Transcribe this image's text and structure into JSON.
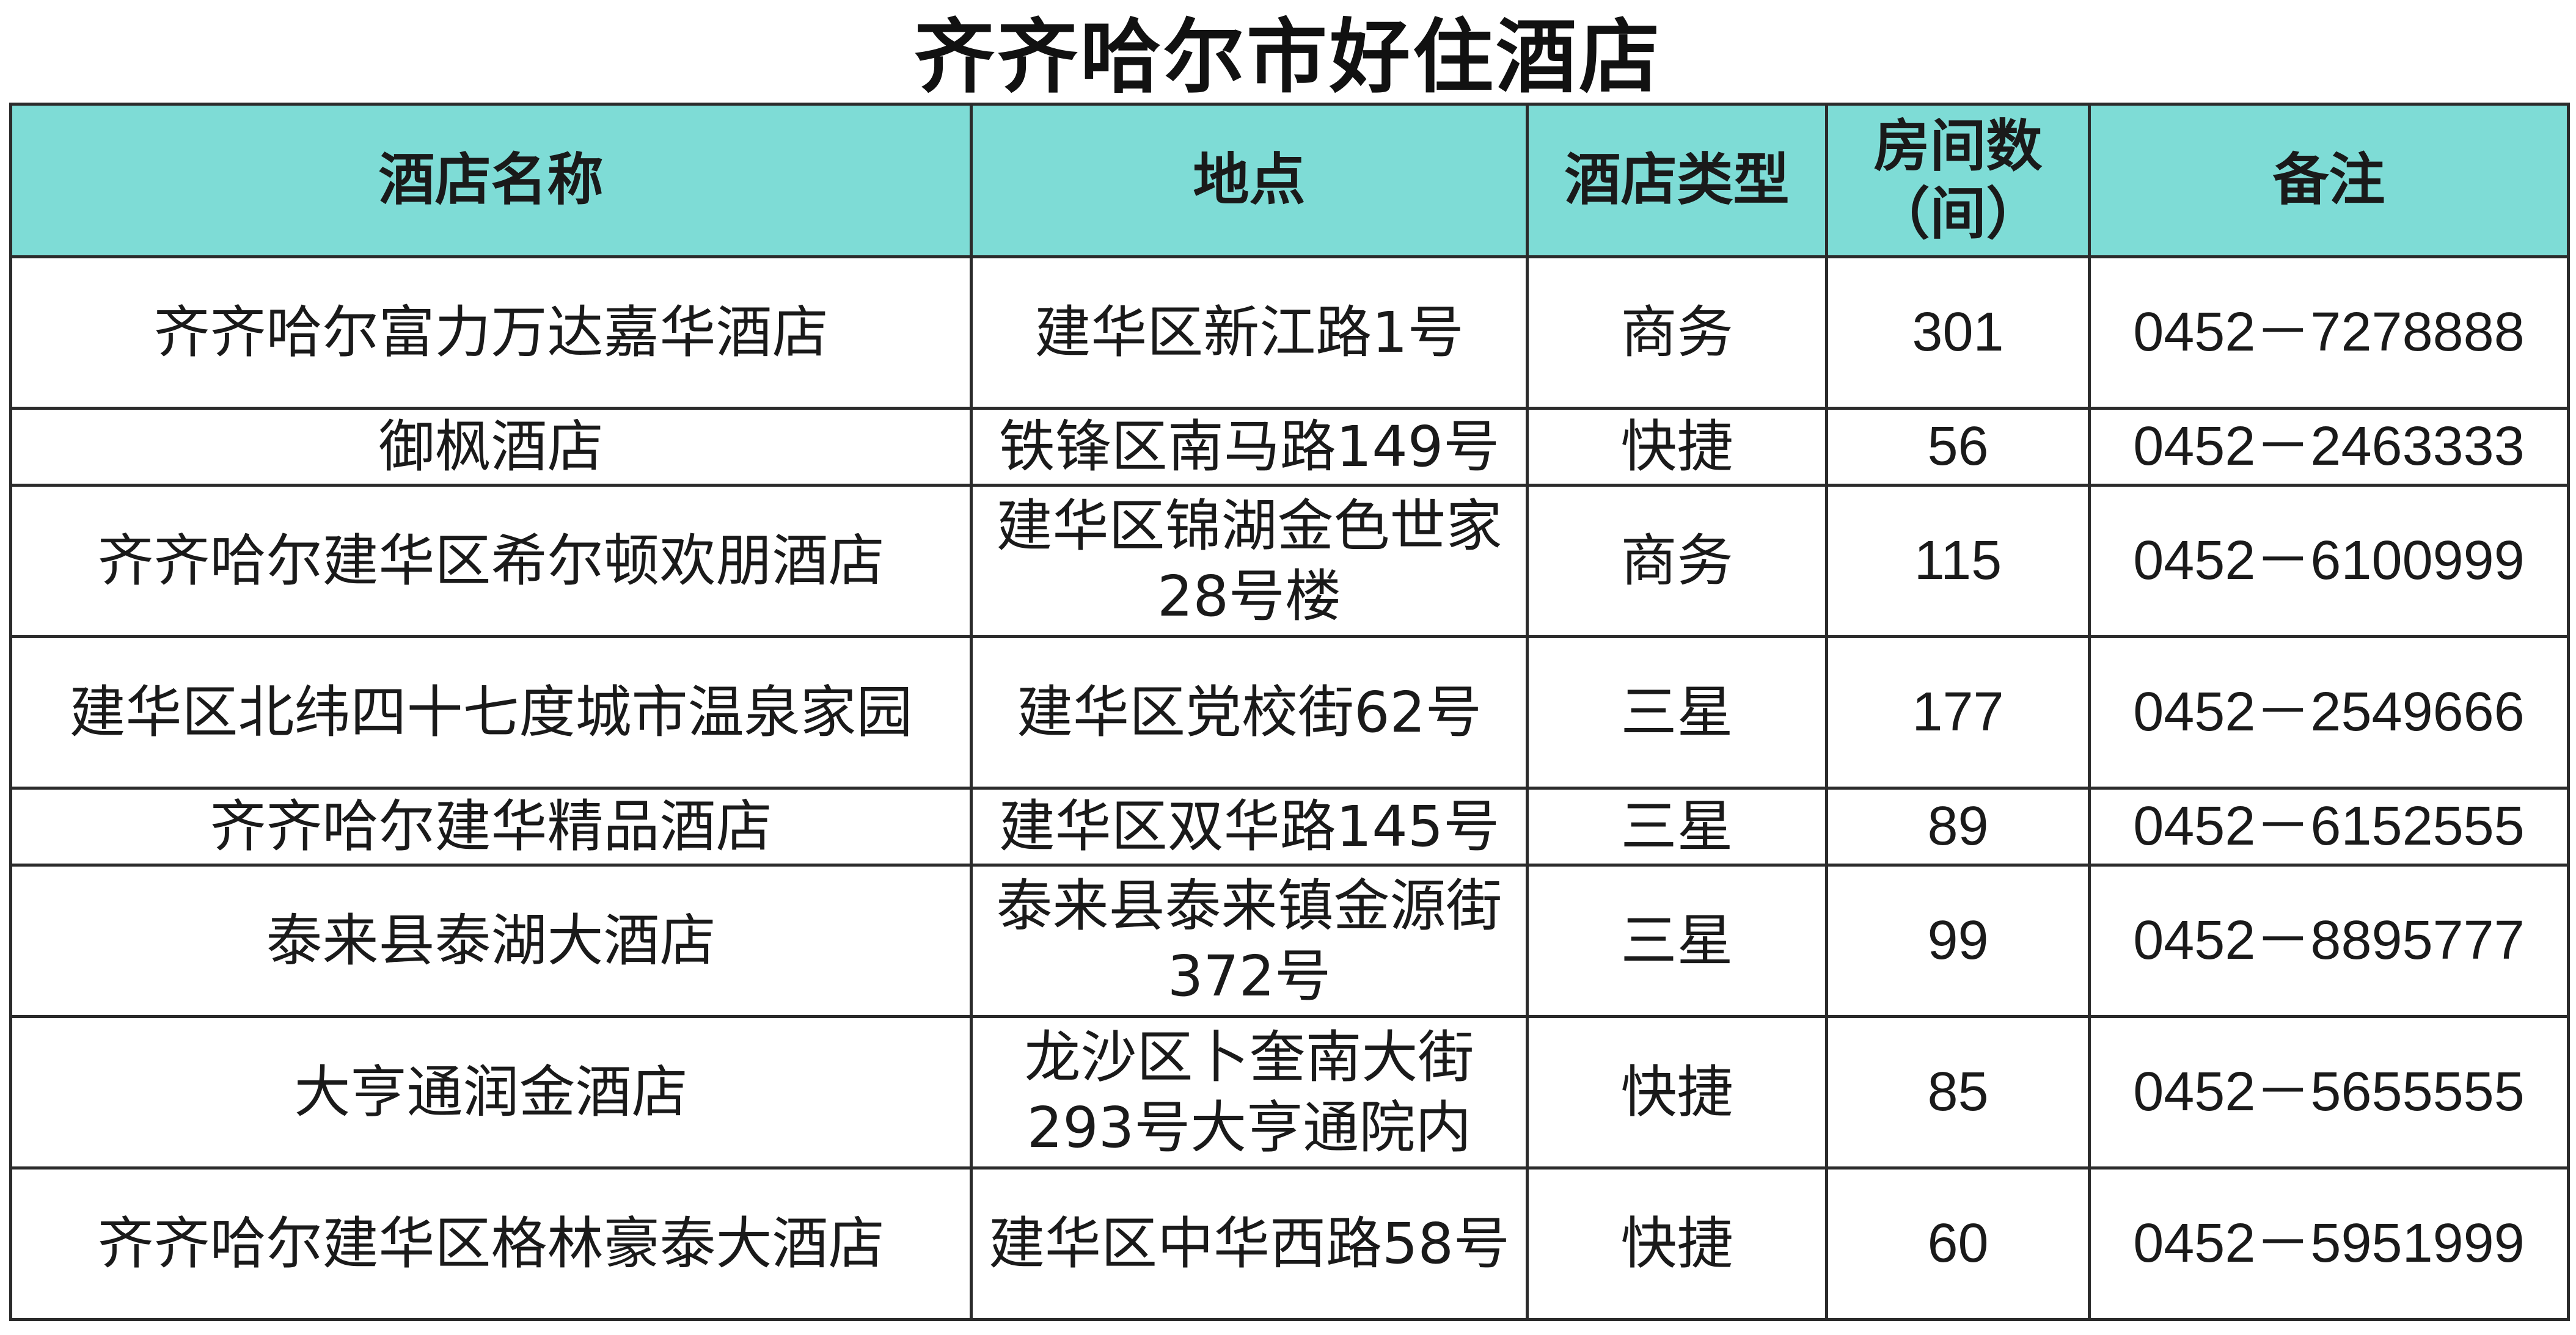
{
  "title": "齐齐哈尔市好住酒店",
  "columns": [
    {
      "label": "酒店名称"
    },
    {
      "label": "地点"
    },
    {
      "label": "酒店类型"
    },
    {
      "label": "房间数（间）"
    },
    {
      "label": "备注"
    }
  ],
  "rows": [
    {
      "name": "齐齐哈尔富力万达嘉华酒店",
      "location": "建华区新江路1号",
      "type": "商务",
      "rooms": "301",
      "note": "0452－7278888"
    },
    {
      "name": "御枫酒店",
      "location": "铁锋区南马路149号",
      "type": "快捷",
      "rooms": "56",
      "note": "0452－2463333"
    },
    {
      "name": "齐齐哈尔建华区希尔顿欢朋酒店",
      "location": "建华区锦湖金色世家28号楼",
      "type": "商务",
      "rooms": "115",
      "note": "0452－6100999"
    },
    {
      "name": "建华区北纬四十七度城市温泉家园",
      "location": "建华区党校街62号",
      "type": "三星",
      "rooms": "177",
      "note": "0452－2549666"
    },
    {
      "name": "齐齐哈尔建华精品酒店",
      "location": "建华区双华路145号",
      "type": "三星",
      "rooms": "89",
      "note": "0452－6152555"
    },
    {
      "name": "泰来县泰湖大酒店",
      "location": "泰来县泰来镇金源街372号",
      "type": "三星",
      "rooms": "99",
      "note": "0452－8895777"
    },
    {
      "name": "大亨通润金酒店",
      "location": "龙沙区卜奎南大街293号大亨通院内",
      "type": "快捷",
      "rooms": "85",
      "note": "0452－5655555"
    },
    {
      "name": "齐齐哈尔建华区格林豪泰大酒店",
      "location": "建华区中华西路58号",
      "type": "快捷",
      "rooms": "60",
      "note": "0452－5951999"
    }
  ],
  "colors": {
    "header_background": "#7edcd6",
    "border": "#2b2b2b",
    "text": "#1a1a1a"
  }
}
